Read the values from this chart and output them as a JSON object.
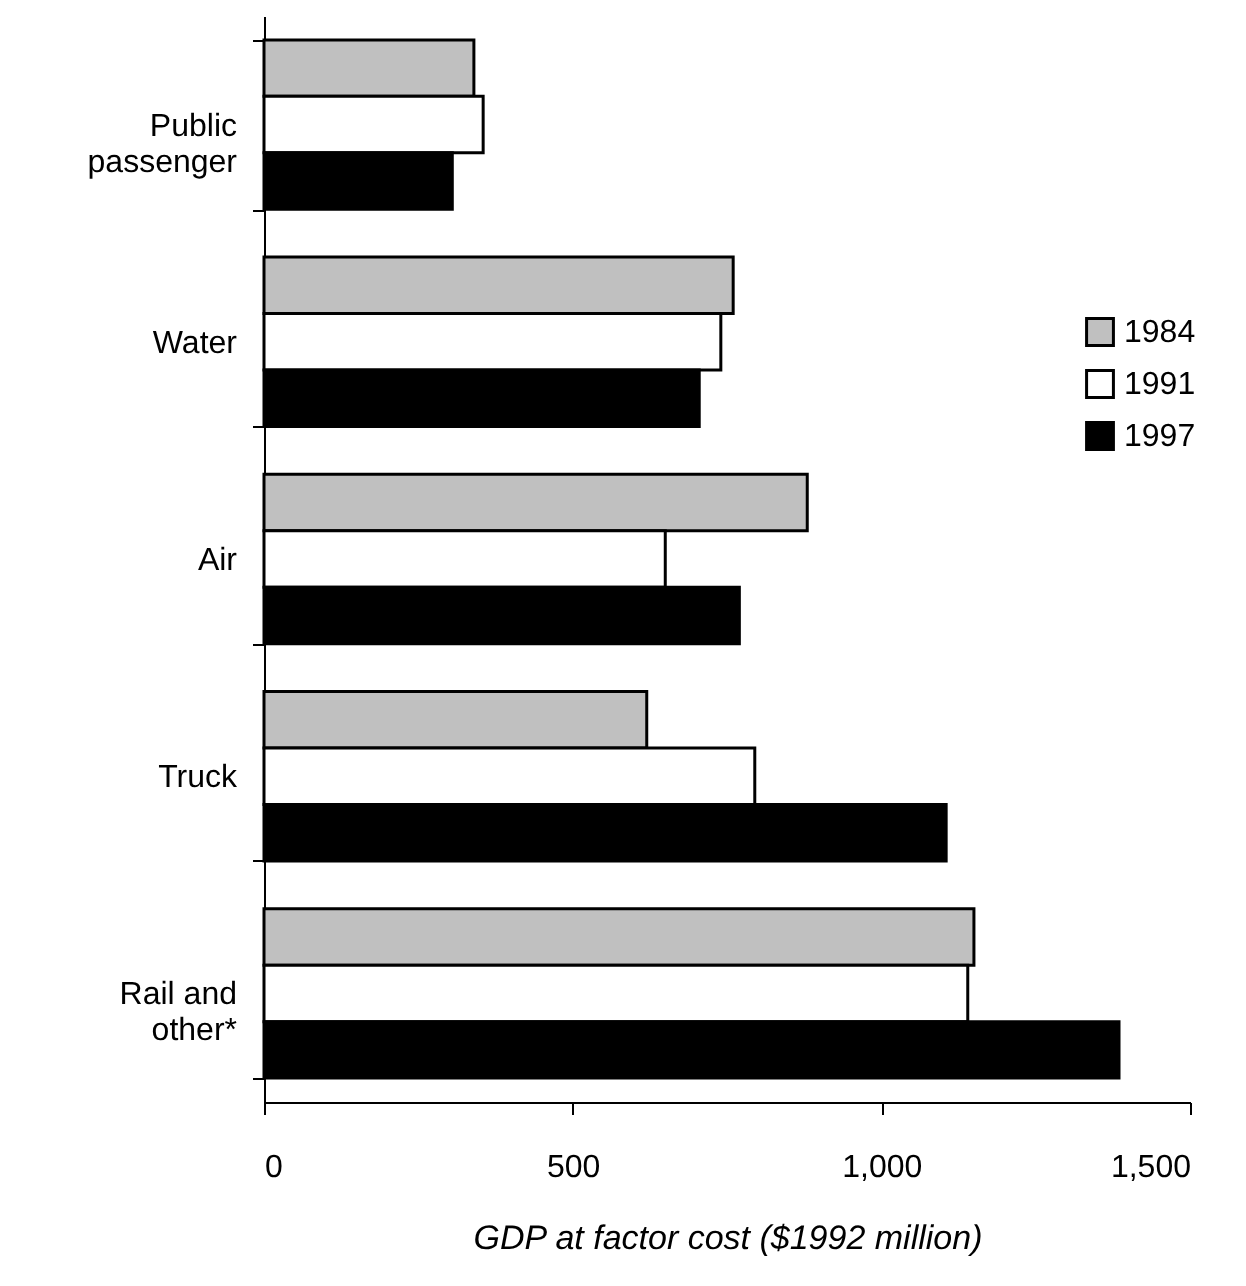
{
  "chart_data": {
    "type": "bar",
    "orientation": "horizontal",
    "xlabel": "GDP at factor cost ($1992 million)",
    "categories": [
      "Public\npassenger",
      "Water",
      "Air",
      "Truck",
      "Rail and\nother*"
    ],
    "series": [
      {
        "name": "1984",
        "color": "#c0c0c0",
        "values": [
          340,
          760,
          880,
          620,
          1150
        ]
      },
      {
        "name": "1991",
        "color": "#ffffff",
        "values": [
          355,
          740,
          650,
          795,
          1140
        ]
      },
      {
        "name": "1997",
        "color": "#000000",
        "values": [
          305,
          705,
          770,
          1105,
          1385
        ]
      }
    ],
    "xlim": [
      0,
      1500
    ],
    "xticks": [
      0,
      500,
      {
        "value": 1000,
        "label": "1,000"
      },
      {
        "value": 1500,
        "label": "1,500"
      }
    ],
    "grid": false,
    "legend": "right"
  }
}
